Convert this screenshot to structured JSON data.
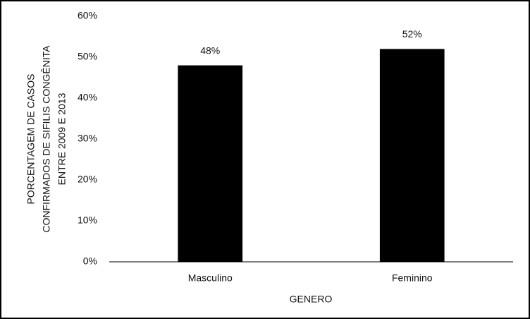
{
  "chart_data": {
    "type": "bar",
    "categories": [
      "Masculino",
      "Feminino"
    ],
    "values": [
      48,
      52
    ],
    "value_labels": [
      "48%",
      "52%"
    ],
    "color": "#000000",
    "xlabel": "GENERO",
    "ylabel": [
      "PORCENTAGEM DE CASOS",
      "CONFIRMADOS DE SIFILIS CONGÊNITA",
      "ENTRE 2009 E 2013"
    ],
    "ylim": [
      0,
      60
    ],
    "yticks": [
      {
        "value": 0,
        "label": "0%"
      },
      {
        "value": 10,
        "label": "10%"
      },
      {
        "value": 20,
        "label": "20%"
      },
      {
        "value": 30,
        "label": "30%"
      },
      {
        "value": 40,
        "label": "40%"
      },
      {
        "value": 50,
        "label": "50%"
      },
      {
        "value": 60,
        "label": "60%"
      }
    ],
    "grid": false
  }
}
